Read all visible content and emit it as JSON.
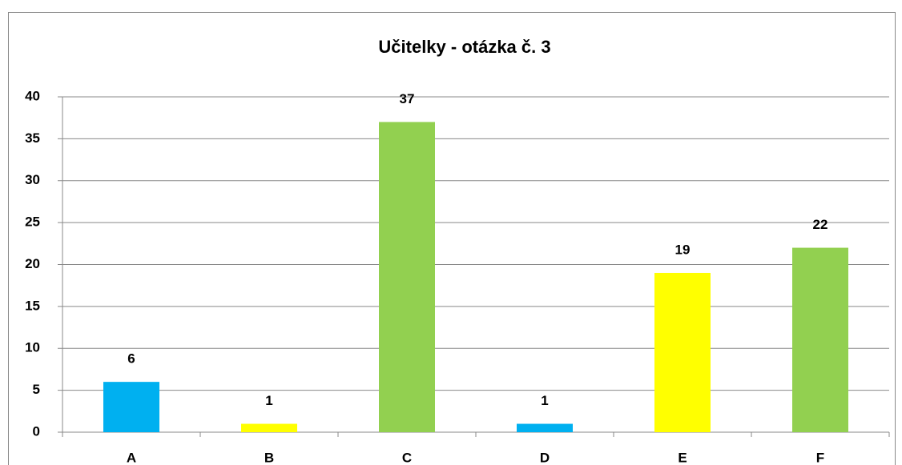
{
  "chart_data": {
    "type": "bar",
    "title": "Učitelky - otázka č. 3",
    "categories": [
      "A",
      "B",
      "C",
      "D",
      "E",
      "F"
    ],
    "values": [
      6,
      1,
      37,
      1,
      19,
      22
    ],
    "colors": [
      "#00b0f0",
      "#ffff00",
      "#92d050",
      "#00b0f0",
      "#ffff00",
      "#92d050"
    ],
    "ylim": [
      0,
      40
    ],
    "yticks": [
      0,
      5,
      10,
      15,
      20,
      25,
      30,
      35,
      40
    ],
    "grid": true
  }
}
